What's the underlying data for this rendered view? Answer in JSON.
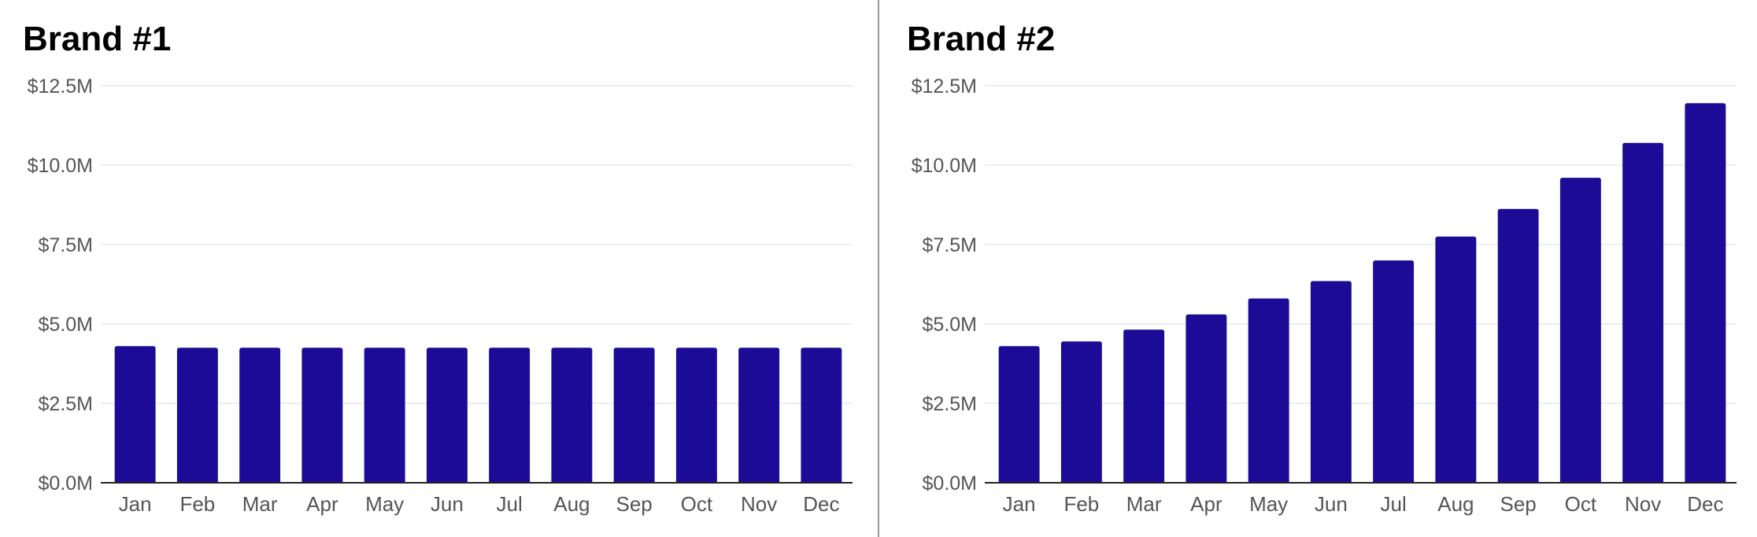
{
  "colors": {
    "bar": "#1c0b96",
    "grid": "#e8e8e8",
    "axis": "#222222",
    "text": "#555555",
    "divider": "#9a9a9a"
  },
  "chart_data": [
    {
      "type": "bar",
      "title": "Brand #1",
      "categories": [
        "Jan",
        "Feb",
        "Mar",
        "Apr",
        "May",
        "Jun",
        "Jul",
        "Aug",
        "Sep",
        "Oct",
        "Nov",
        "Dec"
      ],
      "values": [
        4.3,
        4.25,
        4.25,
        4.25,
        4.25,
        4.25,
        4.25,
        4.25,
        4.25,
        4.25,
        4.25,
        4.25
      ],
      "unit": "$M",
      "ylim": [
        0,
        12.5
      ],
      "yticks": [
        0,
        2.5,
        5.0,
        7.5,
        10.0,
        12.5
      ],
      "ytick_labels": [
        "$0.0M",
        "$2.5M",
        "$5.0M",
        "$7.5M",
        "$10.0M",
        "$12.5M"
      ],
      "grid": true,
      "legend": "none"
    },
    {
      "type": "bar",
      "title": "Brand #2",
      "categories": [
        "Jan",
        "Feb",
        "Mar",
        "Apr",
        "May",
        "Jun",
        "Jul",
        "Aug",
        "Sep",
        "Oct",
        "Nov",
        "Dec"
      ],
      "values": [
        4.3,
        4.45,
        4.82,
        5.3,
        5.8,
        6.35,
        7.0,
        7.75,
        8.62,
        9.6,
        10.7,
        11.95
      ],
      "unit": "$M",
      "ylim": [
        0,
        12.5
      ],
      "yticks": [
        0,
        2.5,
        5.0,
        7.5,
        10.0,
        12.5
      ],
      "ytick_labels": [
        "$0.0M",
        "$2.5M",
        "$5.0M",
        "$7.5M",
        "$10.0M",
        "$12.5M"
      ],
      "grid": true,
      "legend": "none"
    }
  ]
}
